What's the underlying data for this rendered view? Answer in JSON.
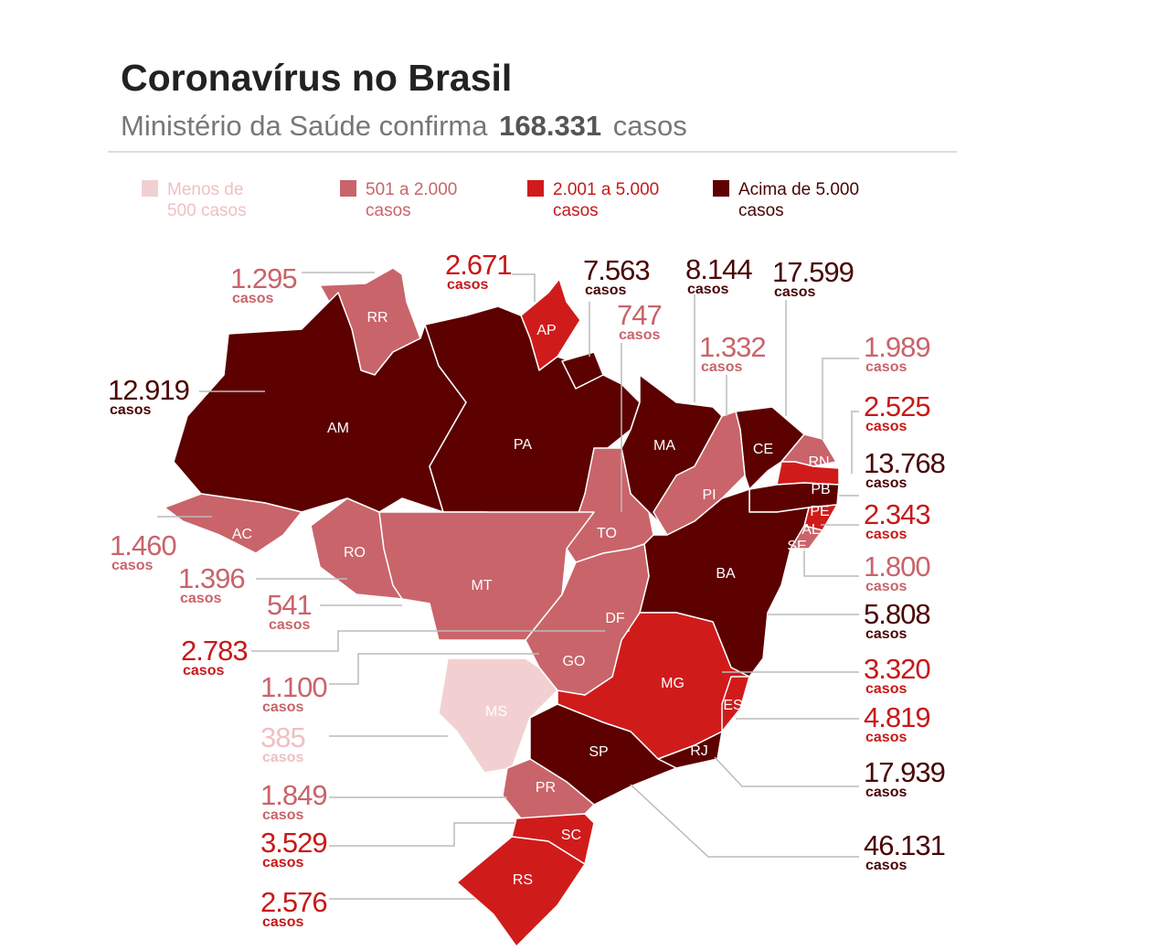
{
  "header": {
    "title": "Coronavírus no Brasil",
    "subtitle_before": "Ministério da Saúde confirma",
    "subtitle_total": "168.331",
    "subtitle_after": "casos"
  },
  "legend": {
    "items": [
      {
        "lines": [
          "Menos de",
          "500 casos"
        ],
        "color": "#f2d0d1",
        "text_color": "#f0c0c3"
      },
      {
        "lines": [
          "501 a 2.000",
          "casos"
        ],
        "color": "#c9646a",
        "text_color": "#c9646a"
      },
      {
        "lines": [
          "2.001 a 5.000",
          "casos"
        ],
        "color": "#d01b1b",
        "text_color": "#c81818"
      },
      {
        "lines": [
          "Acima de 5.000",
          "casos"
        ],
        "color": "#5c0000",
        "text_color": "#4a0505"
      }
    ]
  },
  "case_word": "casos",
  "states": [
    {
      "code": "RR",
      "cases": "1.295",
      "level": 1
    },
    {
      "code": "AP",
      "cases": "2.671",
      "level": 2
    },
    {
      "code": "AM",
      "cases": "12.919",
      "level": 3
    },
    {
      "code": "PA",
      "cases": "7.563",
      "level": 3
    },
    {
      "code": "MA",
      "cases": "8.144",
      "level": 3
    },
    {
      "code": "CE",
      "cases": "17.599",
      "level": 3
    },
    {
      "code": "TO",
      "cases": "747",
      "level": 1
    },
    {
      "code": "PI",
      "cases": "1.332",
      "level": 1
    },
    {
      "code": "RN",
      "cases": "1.989",
      "level": 1
    },
    {
      "code": "PB",
      "cases": "2.525",
      "level": 2
    },
    {
      "code": "PE",
      "cases": "13.768",
      "level": 3
    },
    {
      "code": "AL",
      "cases": "2.343",
      "level": 2
    },
    {
      "code": "SE",
      "cases": "1.800",
      "level": 1
    },
    {
      "code": "BA",
      "cases": "5.808",
      "level": 3
    },
    {
      "code": "MG",
      "cases": "3.320",
      "level": 2
    },
    {
      "code": "ES",
      "cases": "4.819",
      "level": 2
    },
    {
      "code": "RJ",
      "cases": "17.939",
      "level": 3
    },
    {
      "code": "SP",
      "cases": "46.131",
      "level": 3
    },
    {
      "code": "AC",
      "cases": "1.460",
      "level": 1
    },
    {
      "code": "RO",
      "cases": "1.396",
      "level": 1
    },
    {
      "code": "MT",
      "cases": "541",
      "level": 1
    },
    {
      "code": "DF",
      "cases": "2.783",
      "level": 2
    },
    {
      "code": "GO",
      "cases": "1.100",
      "level": 1
    },
    {
      "code": "MS",
      "cases": "385",
      "level": 0
    },
    {
      "code": "PR",
      "cases": "1.849",
      "level": 1
    },
    {
      "code": "SC",
      "cases": "3.529",
      "level": 2
    },
    {
      "code": "RS",
      "cases": "2.576",
      "level": 2
    }
  ]
}
